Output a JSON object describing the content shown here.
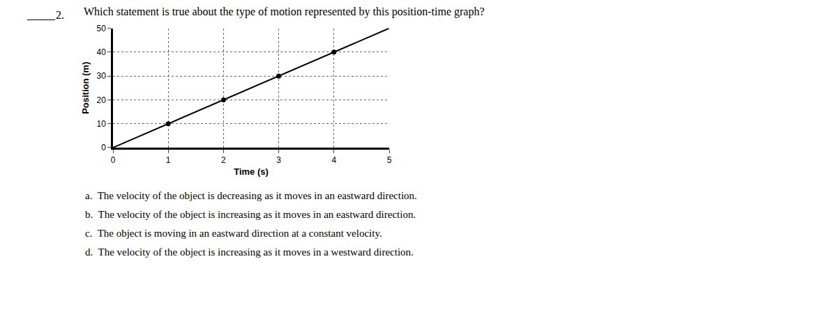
{
  "chart_data": {
    "type": "line",
    "title": "Which statement is true about the type of motion represented by this position-time graph?",
    "annotations": [
      "_____",
      "2.",
      "a.  The velocity of the object is decreasing as it moves in an eastward direction.",
      "b.  The velocity of the object is increasing as it moves in an eastward direction.",
      "c.  The object is moving in an eastward direction at a constant velocity.",
      "d.  The velocity of the object is increasing as it moves in a westward direction."
    ],
    "xlabel": "Time (s)",
    "ylabel": "Position (m)",
    "xlim": [
      0,
      5
    ],
    "ylim": [
      0,
      50
    ],
    "xticks": [
      0,
      1,
      2,
      3,
      4,
      5
    ],
    "yticks": [
      0,
      10,
      20,
      30,
      40,
      50
    ],
    "grid": true,
    "series": [
      {
        "type": "line",
        "x": [
          0,
          5
        ],
        "values": [
          0,
          50
        ],
        "color": "#000000",
        "line_style": "solid"
      },
      {
        "type": "scatter",
        "x": [
          1,
          2,
          3,
          4
        ],
        "values": [
          10,
          20,
          30,
          40
        ],
        "color": "#000000",
        "marker": "circle"
      }
    ]
  }
}
